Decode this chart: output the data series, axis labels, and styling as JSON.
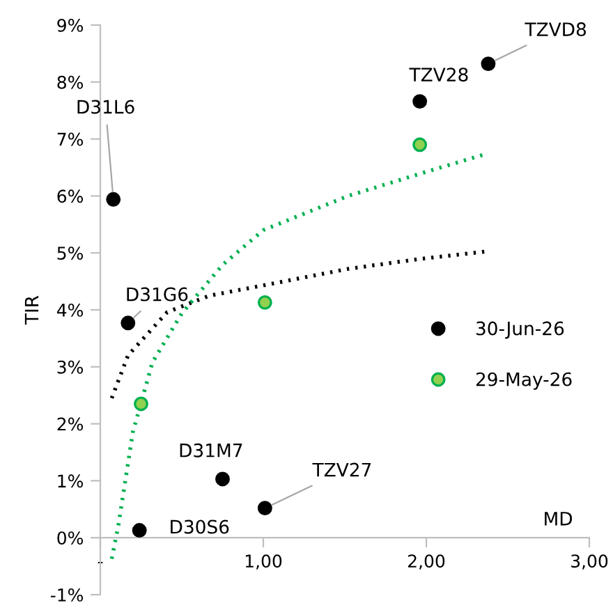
{
  "chart_data": {
    "type": "scatter",
    "xlabel": "MD",
    "ylabel": "TIR",
    "xlim": [
      0,
      3
    ],
    "ylim": [
      -1,
      9
    ],
    "xticks": [
      {
        "value": 0,
        "label": "-"
      },
      {
        "value": 1,
        "label": "1,00"
      },
      {
        "value": 2,
        "label": "2,00"
      },
      {
        "value": 3,
        "label": "3,00"
      }
    ],
    "yticks": [
      {
        "value": -1,
        "label": "-1%"
      },
      {
        "value": 0,
        "label": "0%"
      },
      {
        "value": 1,
        "label": "1%"
      },
      {
        "value": 2,
        "label": "2%"
      },
      {
        "value": 3,
        "label": "3%"
      },
      {
        "value": 4,
        "label": "4%"
      },
      {
        "value": 5,
        "label": "5%"
      },
      {
        "value": 6,
        "label": "6%"
      },
      {
        "value": 7,
        "label": "7%"
      },
      {
        "value": 8,
        "label": "8%"
      },
      {
        "value": 9,
        "label": "9%"
      }
    ],
    "grid": false,
    "legend": "right",
    "marker": "circle",
    "series": [
      {
        "name": "30-Jun-26",
        "color": "#000000",
        "x": [
          0.08,
          0.17,
          0.24,
          0.75,
          1.01,
          1.96,
          2.38
        ],
        "values": [
          5.94,
          3.77,
          0.13,
          1.03,
          0.52,
          7.66,
          8.32
        ]
      },
      {
        "name": "29-May-26",
        "color": "#92d050",
        "x": [
          0.25,
          1.01,
          1.96
        ],
        "values": [
          2.35,
          4.13,
          6.9
        ]
      },
      {
        "type": "line",
        "color": "#000000",
        "line_style": "dotted",
        "marker": "none",
        "x": [
          0.07,
          0.17,
          0.41,
          0.67,
          1.0,
          1.52,
          1.95,
          2.38
        ],
        "values": [
          2.45,
          3.2,
          3.96,
          4.25,
          4.43,
          4.72,
          4.89,
          5.03
        ]
      },
      {
        "type": "line",
        "color": "#00b050",
        "line_style": "dotted",
        "marker": "none",
        "x": [
          0.07,
          0.11,
          0.2,
          0.32,
          0.5,
          0.75,
          1.0,
          1.52,
          1.95,
          2.38
        ],
        "values": [
          -0.37,
          0.2,
          1.86,
          3.08,
          3.94,
          4.79,
          5.4,
          6.0,
          6.38,
          6.75
        ]
      }
    ],
    "annotations": [
      {
        "text": "D31L6",
        "x": 0.08,
        "y": 5.94
      },
      {
        "text": "D31G6",
        "x": 0.17,
        "y": 3.77
      },
      {
        "text": "D30S6",
        "x": 0.24,
        "y": 0.13
      },
      {
        "text": "D31M7",
        "x": 0.75,
        "y": 1.03
      },
      {
        "text": "TZV27",
        "x": 1.01,
        "y": 0.52
      },
      {
        "text": "TZV28",
        "x": 1.96,
        "y": 7.66
      },
      {
        "text": "TZVD8",
        "x": 2.38,
        "y": 8.32
      }
    ]
  }
}
